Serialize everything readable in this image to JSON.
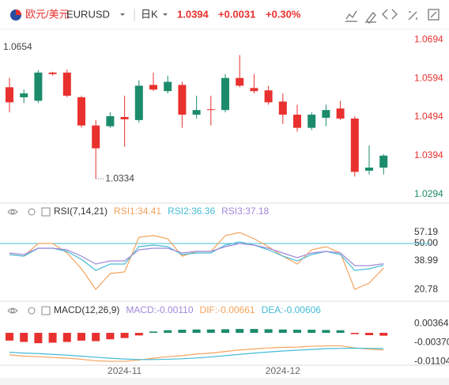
{
  "header": {
    "pair": "欧元/美元",
    "symbol": "EURUSD",
    "period": "日K",
    "price": "1.0394",
    "change": "+0.0031",
    "change_pct": "+0.30%"
  },
  "chart_data": [
    {
      "type": "candlestick",
      "categories": [
        null,
        null,
        null,
        null,
        null,
        null,
        null,
        null,
        "2024-11",
        null,
        null,
        null,
        null,
        null,
        null,
        null,
        null,
        null,
        null,
        "2024-12",
        null,
        null,
        null,
        null,
        null,
        null,
        null
      ],
      "open": [
        1.0571,
        1.0545,
        1.0536,
        1.0609,
        1.0609,
        1.0545,
        1.0472,
        1.047,
        1.0494,
        1.0486,
        1.0577,
        1.0561,
        1.0577,
        1.05,
        1.0514,
        1.0512,
        1.0595,
        1.0569,
        1.0563,
        1.0534,
        1.05,
        1.0466,
        1.0492,
        1.0516,
        1.049,
        1.0355,
        1.0363
      ],
      "high": [
        1.0595,
        1.0565,
        1.0615,
        1.0611,
        1.0617,
        1.0549,
        1.0486,
        1.0506,
        1.0549,
        1.0589,
        1.0609,
        1.0601,
        1.0585,
        1.0549,
        1.0549,
        1.0605,
        1.0654,
        1.0605,
        1.0575,
        1.0555,
        1.0526,
        1.0506,
        1.0526,
        1.0536,
        1.0496,
        1.042,
        1.0398
      ],
      "low": [
        1.0506,
        1.053,
        1.053,
        1.0601,
        1.0545,
        1.0466,
        1.0334,
        1.0466,
        1.0417,
        1.048,
        1.0561,
        1.0555,
        1.0466,
        1.049,
        1.0472,
        1.0506,
        1.0571,
        1.0555,
        1.0526,
        1.0476,
        1.0456,
        1.046,
        1.047,
        1.0486,
        1.034,
        1.0345,
        1.0345
      ],
      "close": [
        1.0532,
        1.0555,
        1.0609,
        1.0605,
        1.0549,
        1.0472,
        1.0413,
        1.0496,
        1.0488,
        1.0575,
        1.0565,
        1.0585,
        1.05,
        1.0512,
        1.0512,
        1.0595,
        1.0575,
        1.0561,
        1.0532,
        1.05,
        1.0466,
        1.05,
        1.0512,
        1.049,
        1.0352,
        1.0363,
        1.0394
      ],
      "up_color": "#1c8b6c",
      "down_color": "#e8312f",
      "ylim": [
        1.0275,
        1.0715
      ],
      "yticks": [
        1.0294,
        1.0394,
        1.0494,
        1.0594,
        1.0694
      ],
      "max_label": "1.0654",
      "min_label": "1.0334"
    },
    {
      "type": "line",
      "title": "RSI(7,14,21)",
      "series": [
        {
          "name": "RSI1:34.41",
          "color": "#f3a35c",
          "values": [
            43,
            42,
            50,
            50,
            44,
            34,
            21,
            31,
            32,
            54,
            55,
            53,
            42,
            45,
            45,
            55,
            57,
            53,
            48,
            42,
            37,
            46,
            48,
            44,
            21,
            25,
            34.41
          ]
        },
        {
          "name": "RSI2:36.36",
          "color": "#45bcd6",
          "values": [
            43,
            42,
            47,
            47,
            45,
            40,
            33,
            37,
            37,
            48,
            49,
            48,
            43,
            44,
            44,
            49,
            51,
            49,
            46,
            42,
            39,
            43,
            45,
            43,
            33,
            34,
            36.36
          ]
        },
        {
          "name": "RSI3:37.18",
          "color": "#a18ad9",
          "values": [
            44,
            43,
            47,
            47,
            46,
            42,
            37,
            39,
            39,
            46,
            47,
            47,
            44,
            45,
            45,
            48,
            50,
            49,
            47,
            44,
            41,
            44,
            45,
            44,
            36,
            36,
            37.18
          ]
        }
      ],
      "ylim": [
        15,
        65
      ],
      "yticks": [
        20.78,
        38.99,
        {
          "value": 50,
          "label": "50.00"
        },
        57.19
      ],
      "reference_line": {
        "value": 50,
        "color": "#45bcd6"
      }
    },
    {
      "type": "macd",
      "title": "MACD(12,26,9)",
      "histogram": {
        "name": "MACD:-0.00110",
        "color": "#a18ad9",
        "values": [
          -0.003,
          -0.0035,
          -0.004,
          -0.0038,
          -0.0035,
          -0.003,
          -0.0032,
          -0.0025,
          -0.002,
          -0.001,
          0.0005,
          0.001,
          0.0012,
          0.0013,
          0.0013,
          0.0014,
          0.0015,
          0.0015,
          0.0014,
          0.0013,
          0.0012,
          0.0012,
          0.0011,
          0.001,
          -0.0005,
          -0.0009,
          -0.0011
        ]
      },
      "up_color": "#1c8b6c",
      "down_color": "#e8312f",
      "series": [
        {
          "name": "DIF:-0.00661",
          "color": "#f3a35c",
          "values": [
            -0.0085,
            -0.009,
            -0.0092,
            -0.0095,
            -0.0098,
            -0.0102,
            -0.0108,
            -0.011,
            -0.011,
            -0.0105,
            -0.0098,
            -0.0092,
            -0.0088,
            -0.0082,
            -0.0078,
            -0.0072,
            -0.0066,
            -0.0062,
            -0.0058,
            -0.0056,
            -0.0055,
            -0.0052,
            -0.005,
            -0.005,
            -0.0058,
            -0.0063,
            -0.00661
          ]
        },
        {
          "name": "DEA:-0.00606",
          "color": "#45bcd6",
          "values": [
            -0.0075,
            -0.0078,
            -0.008,
            -0.0083,
            -0.0086,
            -0.009,
            -0.0094,
            -0.0098,
            -0.0101,
            -0.0103,
            -0.0103,
            -0.0102,
            -0.01,
            -0.0097,
            -0.0093,
            -0.0088,
            -0.0083,
            -0.0078,
            -0.0074,
            -0.007,
            -0.0067,
            -0.0064,
            -0.0061,
            -0.006,
            -0.0059,
            -0.006,
            -0.00606
          ]
        }
      ],
      "ylim": [
        -0.0125,
        0.0055
      ],
      "yticks": [
        -0.01104,
        {
          "value": -0.0037,
          "label": "-0.00370"
        },
        0.00364
      ]
    }
  ]
}
